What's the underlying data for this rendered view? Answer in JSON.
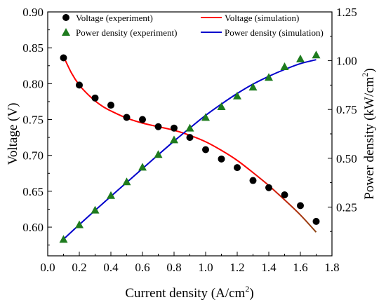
{
  "chart_data": {
    "type": "line",
    "xlabel": "Current density (A/cm",
    "xlabel_sup": "2",
    "xlabel_end": ")",
    "ylabel_left": "Voltage (V)",
    "ylabel_right": "Power density (kW/cm",
    "ylabel_right_sup": "2",
    "ylabel_right_end": ")",
    "xlim": [
      0.0,
      1.8
    ],
    "ylim_left": [
      0.56,
      0.9
    ],
    "ylim_right": [
      0.0,
      1.25
    ],
    "x_ticks": [
      "0.0",
      "0.2",
      "0.4",
      "0.6",
      "0.8",
      "1.0",
      "1.2",
      "1.4",
      "1.6",
      "1.8"
    ],
    "y_left_ticks": [
      "0.60",
      "0.65",
      "0.70",
      "0.75",
      "0.80",
      "0.85",
      "0.90"
    ],
    "y_right_ticks": [
      "0.25",
      "0.50",
      "0.75",
      "1.00",
      "1.25"
    ],
    "legend_placement": "top",
    "series": [
      {
        "name": "Voltage (experiment)",
        "kind": "scatter",
        "marker": "circle",
        "color": "#000000",
        "axis": "left",
        "x": [
          0.1,
          0.2,
          0.3,
          0.4,
          0.5,
          0.6,
          0.7,
          0.8,
          0.9,
          1.0,
          1.1,
          1.2,
          1.3,
          1.4,
          1.5,
          1.6,
          1.7
        ],
        "y": [
          0.836,
          0.798,
          0.78,
          0.77,
          0.753,
          0.75,
          0.74,
          0.738,
          0.725,
          0.708,
          0.695,
          0.683,
          0.665,
          0.655,
          0.645,
          0.63,
          0.608
        ]
      },
      {
        "name": "Voltage (simulation)",
        "kind": "line",
        "color": "#ff0000",
        "color_end": "#8b4513",
        "axis": "left",
        "x": [
          0.1,
          0.15,
          0.2,
          0.25,
          0.3,
          0.35,
          0.4,
          0.5,
          0.6,
          0.7,
          0.8,
          0.9,
          1.0,
          1.1,
          1.2,
          1.3,
          1.4,
          1.5,
          1.6,
          1.7
        ],
        "y": [
          0.838,
          0.815,
          0.798,
          0.786,
          0.776,
          0.768,
          0.762,
          0.752,
          0.745,
          0.74,
          0.735,
          0.728,
          0.719,
          0.707,
          0.693,
          0.676,
          0.658,
          0.638,
          0.617,
          0.593
        ]
      },
      {
        "name": "Power density (experiment)",
        "kind": "scatter",
        "marker": "triangle",
        "color": "#1e7b1e",
        "axis": "right",
        "x": [
          0.1,
          0.2,
          0.3,
          0.4,
          0.5,
          0.6,
          0.7,
          0.8,
          0.9,
          1.0,
          1.1,
          1.2,
          1.3,
          1.4,
          1.5,
          1.6,
          1.7
        ],
        "y": [
          0.085,
          0.16,
          0.235,
          0.31,
          0.38,
          0.455,
          0.52,
          0.595,
          0.655,
          0.71,
          0.765,
          0.82,
          0.865,
          0.915,
          0.97,
          1.01,
          1.03
        ]
      },
      {
        "name": "Power density (simulation)",
        "kind": "line",
        "color": "#0000cc",
        "axis": "right",
        "x": [
          0.1,
          0.2,
          0.3,
          0.4,
          0.5,
          0.6,
          0.7,
          0.8,
          0.9,
          1.0,
          1.1,
          1.2,
          1.3,
          1.4,
          1.5,
          1.6,
          1.7
        ],
        "y": [
          0.085,
          0.16,
          0.233,
          0.305,
          0.376,
          0.447,
          0.518,
          0.588,
          0.655,
          0.72,
          0.778,
          0.832,
          0.88,
          0.92,
          0.955,
          0.985,
          1.005
        ]
      }
    ]
  }
}
